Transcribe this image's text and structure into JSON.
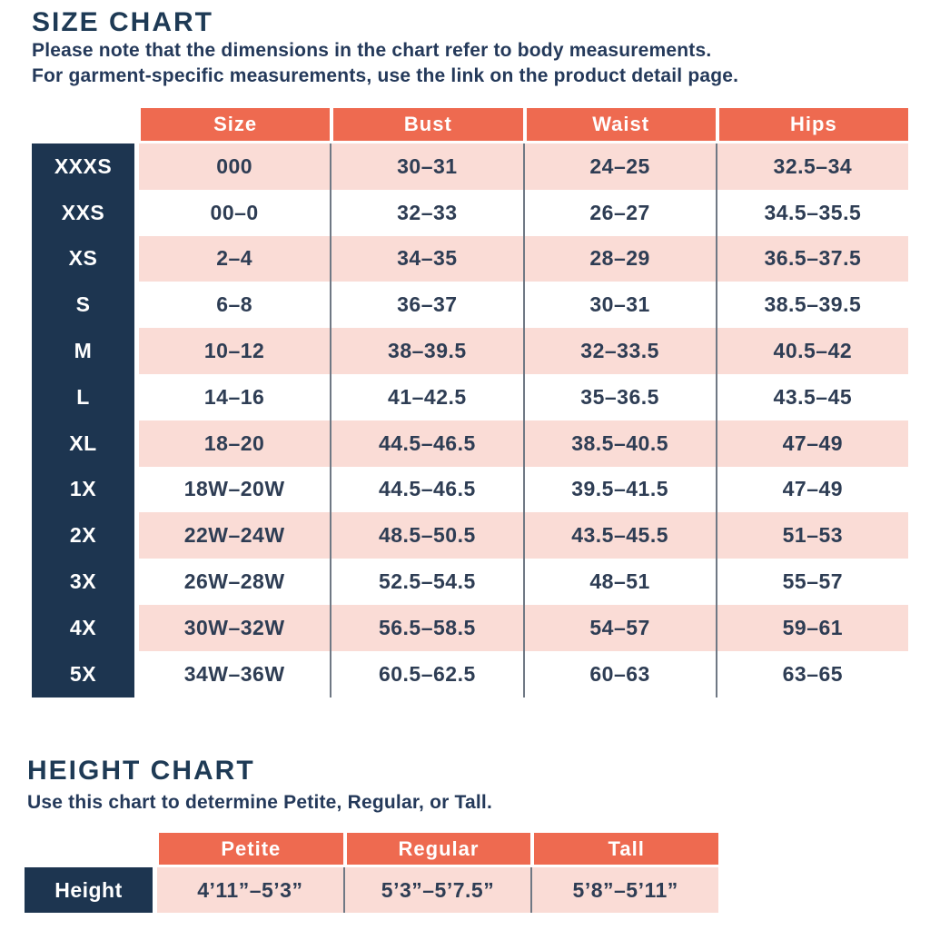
{
  "colors": {
    "navy": "#1d3550",
    "coral": "#ee6a50",
    "pink": "#fadcd6",
    "text": "#2e3d54",
    "divider": "#6f7884"
  },
  "size_chart": {
    "title": "SIZE CHART",
    "note_line1": "Please note that the dimensions in the chart refer to body measurements.",
    "note_line2": "For garment-specific measurements, use the link on the product detail page.",
    "columns": [
      "Size",
      "Bust",
      "Waist",
      "Hips"
    ],
    "rows": [
      {
        "label": "XXXS",
        "size": "000",
        "bust": "30–31",
        "waist": "24–25",
        "hips": "32.5–34"
      },
      {
        "label": "XXS",
        "size": "00–0",
        "bust": "32–33",
        "waist": "26–27",
        "hips": "34.5–35.5"
      },
      {
        "label": "XS",
        "size": "2–4",
        "bust": "34–35",
        "waist": "28–29",
        "hips": "36.5–37.5"
      },
      {
        "label": "S",
        "size": "6–8",
        "bust": "36–37",
        "waist": "30–31",
        "hips": "38.5–39.5"
      },
      {
        "label": "M",
        "size": "10–12",
        "bust": "38–39.5",
        "waist": "32–33.5",
        "hips": "40.5–42"
      },
      {
        "label": "L",
        "size": "14–16",
        "bust": "41–42.5",
        "waist": "35–36.5",
        "hips": "43.5–45"
      },
      {
        "label": "XL",
        "size": "18–20",
        "bust": "44.5–46.5",
        "waist": "38.5–40.5",
        "hips": "47–49"
      },
      {
        "label": "1X",
        "size": "18W–20W",
        "bust": "44.5–46.5",
        "waist": "39.5–41.5",
        "hips": "47–49"
      },
      {
        "label": "2X",
        "size": "22W–24W",
        "bust": "48.5–50.5",
        "waist": "43.5–45.5",
        "hips": "51–53"
      },
      {
        "label": "3X",
        "size": "26W–28W",
        "bust": "52.5–54.5",
        "waist": "48–51",
        "hips": "55–57"
      },
      {
        "label": "4X",
        "size": "30W–32W",
        "bust": "56.5–58.5",
        "waist": "54–57",
        "hips": "59–61"
      },
      {
        "label": "5X",
        "size": "34W–36W",
        "bust": "60.5–62.5",
        "waist": "60–63",
        "hips": "63–65"
      }
    ]
  },
  "height_chart": {
    "title": "HEIGHT CHART",
    "note": "Use this chart to determine Petite, Regular, or Tall.",
    "columns": [
      "Petite",
      "Regular",
      "Tall"
    ],
    "row_label": "Height",
    "values": [
      "4’11”–5’3”",
      "5’3”–5’7.5”",
      "5’8”–5’11”"
    ]
  },
  "chart_data": [
    {
      "type": "table",
      "title": "SIZE CHART",
      "columns": [
        "Size",
        "Bust",
        "Waist",
        "Hips"
      ],
      "row_labels": [
        "XXXS",
        "XXS",
        "XS",
        "S",
        "M",
        "L",
        "XL",
        "1X",
        "2X",
        "3X",
        "4X",
        "5X"
      ],
      "rows": [
        [
          "000",
          "30–31",
          "24–25",
          "32.5–34"
        ],
        [
          "00–0",
          "32–33",
          "26–27",
          "34.5–35.5"
        ],
        [
          "2–4",
          "34–35",
          "28–29",
          "36.5–37.5"
        ],
        [
          "6–8",
          "36–37",
          "30–31",
          "38.5–39.5"
        ],
        [
          "10–12",
          "38–39.5",
          "32–33.5",
          "40.5–42"
        ],
        [
          "14–16",
          "41–42.5",
          "35–36.5",
          "43.5–45"
        ],
        [
          "18–20",
          "44.5–46.5",
          "38.5–40.5",
          "47–49"
        ],
        [
          "18W–20W",
          "44.5–46.5",
          "39.5–41.5",
          "47–49"
        ],
        [
          "22W–24W",
          "48.5–50.5",
          "43.5–45.5",
          "51–53"
        ],
        [
          "26W–28W",
          "52.5–54.5",
          "48–51",
          "55–57"
        ],
        [
          "30W–32W",
          "56.5–58.5",
          "54–57",
          "59–61"
        ],
        [
          "34W–36W",
          "60.5–62.5",
          "60–63",
          "63–65"
        ]
      ]
    },
    {
      "type": "table",
      "title": "HEIGHT CHART",
      "columns": [
        "Petite",
        "Regular",
        "Tall"
      ],
      "row_labels": [
        "Height"
      ],
      "rows": [
        [
          "4’11”–5’3”",
          "5’3”–5’7.5”",
          "5’8”–5’11”"
        ]
      ]
    }
  ]
}
